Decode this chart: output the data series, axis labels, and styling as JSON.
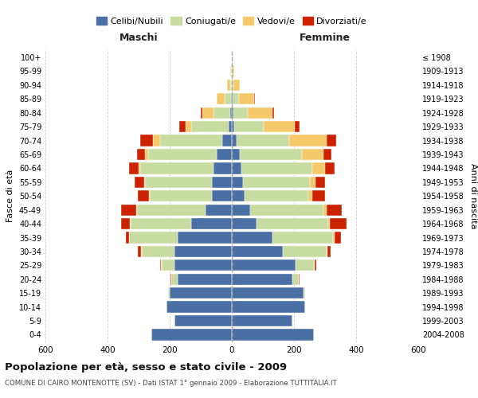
{
  "age_groups": [
    "0-4",
    "5-9",
    "10-14",
    "15-19",
    "20-24",
    "25-29",
    "30-34",
    "35-39",
    "40-44",
    "45-49",
    "50-54",
    "55-59",
    "60-64",
    "65-69",
    "70-74",
    "75-79",
    "80-84",
    "85-89",
    "90-94",
    "95-99",
    "100+"
  ],
  "birth_years": [
    "2004-2008",
    "1999-2003",
    "1994-1998",
    "1989-1993",
    "1984-1988",
    "1979-1983",
    "1974-1978",
    "1969-1973",
    "1964-1968",
    "1959-1963",
    "1954-1958",
    "1949-1953",
    "1944-1948",
    "1939-1943",
    "1934-1938",
    "1929-1933",
    "1924-1928",
    "1919-1923",
    "1914-1918",
    "1909-1913",
    "≤ 1908"
  ],
  "colors": {
    "celibi": "#4a6fa5",
    "coniugati": "#c8dba0",
    "vedovi": "#f5c96a",
    "divorziati": "#cc2200"
  },
  "maschi": {
    "celibi": [
      260,
      185,
      210,
      200,
      175,
      185,
      185,
      175,
      130,
      85,
      65,
      65,
      60,
      50,
      30,
      10,
      5,
      3,
      1,
      1,
      1
    ],
    "coniugati": [
      0,
      0,
      0,
      5,
      20,
      40,
      105,
      155,
      195,
      220,
      200,
      215,
      235,
      220,
      200,
      120,
      55,
      20,
      5,
      2,
      0
    ],
    "vedovi": [
      0,
      0,
      0,
      0,
      1,
      2,
      2,
      2,
      2,
      2,
      2,
      3,
      5,
      10,
      25,
      20,
      35,
      25,
      10,
      3,
      0
    ],
    "divorziati": [
      0,
      0,
      0,
      1,
      2,
      5,
      10,
      10,
      30,
      50,
      35,
      30,
      30,
      25,
      40,
      20,
      5,
      0,
      0,
      0,
      0
    ]
  },
  "femmine": {
    "nubili": [
      265,
      195,
      235,
      230,
      195,
      205,
      165,
      130,
      80,
      60,
      40,
      35,
      30,
      25,
      15,
      8,
      5,
      3,
      1,
      1,
      1
    ],
    "coniugate": [
      0,
      0,
      0,
      5,
      20,
      60,
      140,
      195,
      230,
      235,
      205,
      215,
      230,
      200,
      170,
      95,
      45,
      20,
      5,
      2,
      0
    ],
    "vedove": [
      0,
      0,
      0,
      0,
      1,
      2,
      2,
      5,
      5,
      10,
      15,
      20,
      40,
      70,
      120,
      100,
      80,
      50,
      20,
      5,
      2
    ],
    "divorziate": [
      0,
      0,
      0,
      1,
      2,
      5,
      10,
      20,
      55,
      50,
      40,
      30,
      30,
      25,
      30,
      15,
      5,
      2,
      0,
      0,
      0
    ]
  },
  "title": "Popolazione per età, sesso e stato civile - 2009",
  "subtitle": "COMUNE DI CAIRO MONTENOTTE (SV) - Dati ISTAT 1° gennaio 2009 - Elaborazione TUTTITALIA.IT",
  "xlabel_maschi": "Maschi",
  "xlabel_femmine": "Femmine",
  "ylabel": "Fasce di età",
  "ylabel_right": "Anni di nascita",
  "xlim": 600,
  "legend_labels": [
    "Celibi/Nubili",
    "Coniugati/e",
    "Vedovi/e",
    "Divorziati/e"
  ],
  "background_color": "#ffffff",
  "grid_color": "#cccccc"
}
